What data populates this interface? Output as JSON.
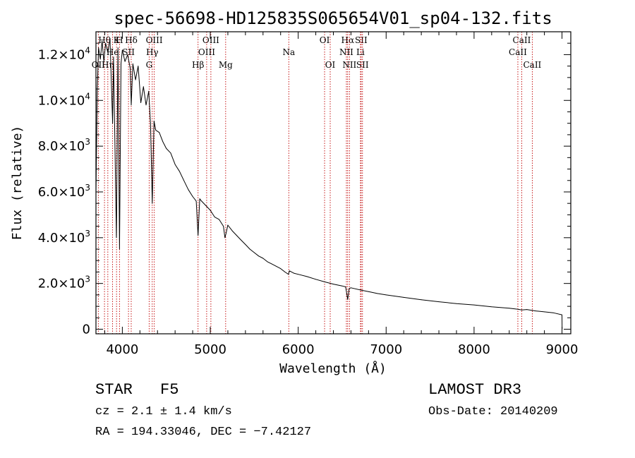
{
  "chart_data": {
    "type": "line",
    "title": "spec-56698-HD125835S065654V01_sp04-132.fits",
    "xlabel": "Wavelength (Å)",
    "ylabel": "Flux (relative)",
    "xlim": [
      3700,
      9100
    ],
    "ylim": [
      -200,
      13000
    ],
    "xticks": [
      4000,
      5000,
      6000,
      7000,
      8000,
      9000
    ],
    "xtick_labels": [
      "4000",
      "5000",
      "6000",
      "7000",
      "8000",
      "9000"
    ],
    "yticks": [
      0,
      2000,
      4000,
      6000,
      8000,
      10000,
      12000
    ],
    "ytick_labels": [
      {
        "mant": "0",
        "exp": ""
      },
      {
        "mant": "2.0×10",
        "exp": "3"
      },
      {
        "mant": "4.0×10",
        "exp": "3"
      },
      {
        "mant": "6.0×10",
        "exp": "3"
      },
      {
        "mant": "8.0×10",
        "exp": "3"
      },
      {
        "mant": "1.0×10",
        "exp": "4"
      },
      {
        "mant": "1.2×10",
        "exp": "4"
      }
    ],
    "series": [
      {
        "name": "flux",
        "x": [
          3700,
          3715,
          3730,
          3750,
          3770,
          3790,
          3810,
          3835,
          3860,
          3889,
          3900,
          3933,
          3950,
          3968,
          3985,
          4000,
          4030,
          4060,
          4090,
          4101,
          4120,
          4150,
          4180,
          4210,
          4240,
          4270,
          4300,
          4320,
          4340,
          4360,
          4380,
          4420,
          4460,
          4500,
          4550,
          4600,
          4650,
          4700,
          4750,
          4800,
          4840,
          4861,
          4880,
          4900,
          4950,
          5000,
          5050,
          5100,
          5150,
          5167,
          5180,
          5200,
          5250,
          5300,
          5350,
          5400,
          5450,
          5500,
          5550,
          5600,
          5650,
          5700,
          5750,
          5800,
          5850,
          5890,
          5900,
          5950,
          6000,
          6100,
          6200,
          6300,
          6400,
          6500,
          6540,
          6563,
          6580,
          6600,
          6700,
          6800,
          6900,
          7000,
          7200,
          7400,
          7600,
          7800,
          8000,
          8200,
          8400,
          8500,
          8542,
          8600,
          8700,
          8800,
          8900,
          9000,
          9001
        ],
        "y": [
          6000,
          10500,
          12300,
          11800,
          12600,
          11700,
          12500,
          12100,
          12700,
          9000,
          11900,
          4000,
          12300,
          3500,
          11600,
          12200,
          11700,
          12000,
          11400,
          9800,
          11600,
          10900,
          11500,
          9900,
          10600,
          9800,
          10400,
          9000,
          5500,
          9100,
          8700,
          8600,
          8200,
          7900,
          7700,
          7200,
          6900,
          6500,
          6100,
          5800,
          5600,
          4100,
          5700,
          5600,
          5400,
          5200,
          4900,
          4800,
          4500,
          4000,
          4200,
          4550,
          4300,
          4100,
          3900,
          3700,
          3500,
          3350,
          3200,
          3100,
          2950,
          2850,
          2750,
          2650,
          2500,
          2400,
          2550,
          2450,
          2400,
          2300,
          2180,
          2070,
          1970,
          1890,
          1850,
          1300,
          1780,
          1810,
          1720,
          1640,
          1560,
          1500,
          1390,
          1290,
          1200,
          1120,
          1060,
          980,
          920,
          870,
          840,
          860,
          800,
          760,
          720,
          630,
          0
        ]
      }
    ],
    "lines": [
      {
        "name": "Hθ",
        "wave": 3797,
        "row": 0
      },
      {
        "name": "OII",
        "wave": 3727,
        "row": 2
      },
      {
        "name": "Hη",
        "wave": 3835,
        "row": 2
      },
      {
        "name": "K",
        "wave": 3934,
        "row": 0
      },
      {
        "name": "H",
        "wave": 3968,
        "row": 0
      },
      {
        "name": "He",
        "wave": 3889,
        "row": 1
      },
      {
        "name": "SII",
        "wave": 4070,
        "row": 1
      },
      {
        "name": "Hδ",
        "wave": 4101,
        "row": 0
      },
      {
        "name": "OIII",
        "wave": 4363,
        "row": 0
      },
      {
        "name": "Hγ",
        "wave": 4340,
        "row": 1
      },
      {
        "name": "G",
        "wave": 4305,
        "row": 2
      },
      {
        "name": "Hβ",
        "wave": 4861,
        "row": 2
      },
      {
        "name": "OIII",
        "wave": 5007,
        "row": 0
      },
      {
        "name": "OIII",
        "wave": 4959,
        "row": 1
      },
      {
        "name": "Mg",
        "wave": 5175,
        "row": 2
      },
      {
        "name": "Na",
        "wave": 5893,
        "row": 1
      },
      {
        "name": "OI",
        "wave": 6300,
        "row": 0
      },
      {
        "name": "OI",
        "wave": 6364,
        "row": 2
      },
      {
        "name": "Hα",
        "wave": 6563,
        "row": 0
      },
      {
        "name": "NII",
        "wave": 6548,
        "row": 1
      },
      {
        "name": "NII",
        "wave": 6583,
        "row": 2
      },
      {
        "name": "SII",
        "wave": 6716,
        "row": 0
      },
      {
        "name": "SII",
        "wave": 6731,
        "row": 2
      },
      {
        "name": "Li",
        "wave": 6708,
        "row": 1
      },
      {
        "name": "CaII",
        "wave": 8542,
        "row": 0
      },
      {
        "name": "CaII",
        "wave": 8498,
        "row": 1
      },
      {
        "name": "CaII",
        "wave": 8662,
        "row": 2
      }
    ]
  },
  "info": {
    "type_label": "STAR",
    "subclass": "F5",
    "survey": "LAMOST DR3",
    "cz": "cz = 2.1 ± 1.4 km/s",
    "obs_date": "Obs-Date: 20140209",
    "coords": "RA = 194.33046, DEC =  −7.42127"
  },
  "colors": {
    "spectrum": "#000000",
    "line_marker": "#c00000",
    "axis": "#000000"
  }
}
